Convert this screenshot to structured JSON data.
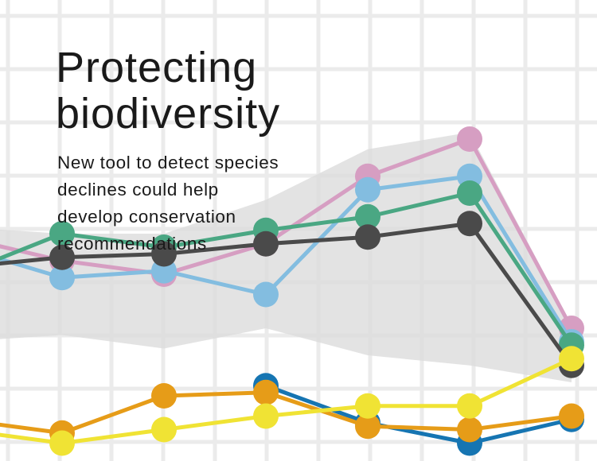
{
  "headline": {
    "line1": "Protecting",
    "line2": "biodiversity"
  },
  "subhead": {
    "line1": "New tool to detect species",
    "line2": "declines could help",
    "line3": "develop conservation",
    "line4": "recommendations"
  },
  "chart_data": {
    "type": "line",
    "title": "",
    "xlabel": "",
    "ylabel": "",
    "grid": true,
    "legend": "none",
    "x": [
      0,
      1,
      2,
      3,
      4,
      5,
      6
    ],
    "ylim": [
      0,
      100
    ],
    "band": {
      "upper": [
        74,
        72,
        72,
        82,
        97,
        102,
        45
      ],
      "lower": [
        40,
        42,
        38,
        44,
        36,
        33,
        28
      ]
    },
    "series": [
      {
        "color": "#d69ec2",
        "values": [
          71,
          64,
          60,
          69,
          89,
          100,
          44
        ]
      },
      {
        "color": "#83bde0",
        "values": [
          68,
          59,
          61,
          54,
          85,
          89,
          40
        ]
      },
      {
        "color": "#4aa783",
        "values": [
          60,
          72,
          68,
          73,
          77,
          84,
          39
        ]
      },
      {
        "color": "#4a4a4a",
        "values": [
          62,
          65,
          66,
          69,
          71,
          75,
          33
        ]
      },
      {
        "color": "#1675b2",
        "values": [
          null,
          null,
          null,
          27,
          16,
          10,
          17
        ]
      },
      {
        "color": "#e69c18",
        "values": [
          17,
          13,
          24,
          25,
          15,
          14,
          18
        ]
      },
      {
        "color": "#f0e334",
        "values": [
          14,
          10,
          14,
          18,
          21,
          21,
          35
        ]
      }
    ]
  }
}
